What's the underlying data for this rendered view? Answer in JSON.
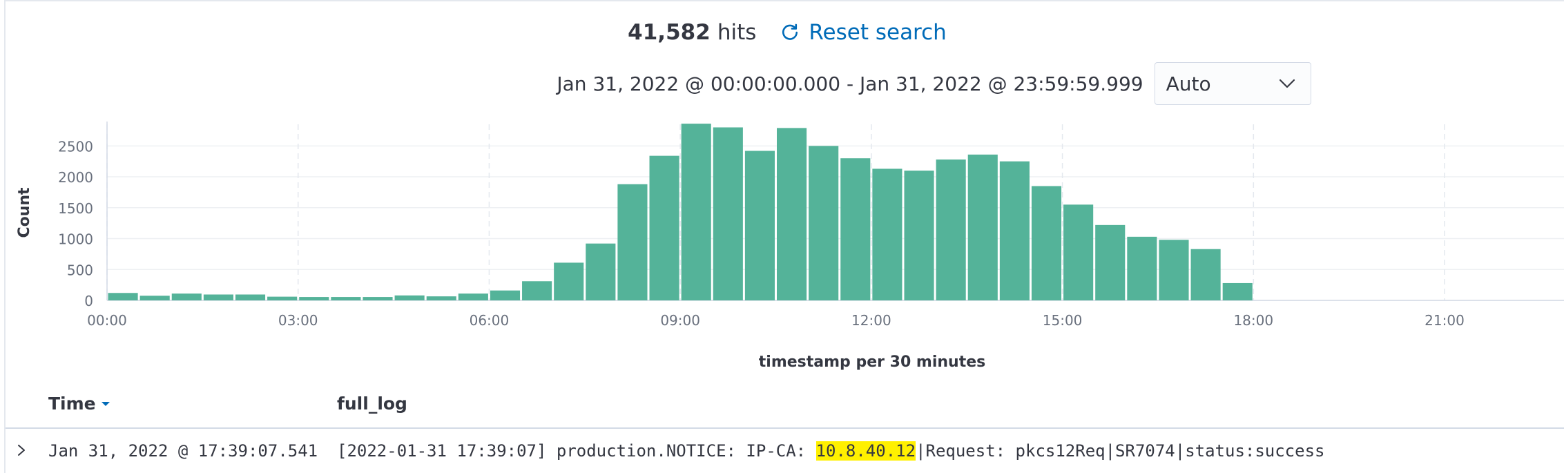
{
  "hits": {
    "count": "41,582",
    "label": "hits"
  },
  "reset": {
    "label": "Reset search",
    "icon": "refresh-icon"
  },
  "time_range": {
    "text": "Jan 31, 2022 @ 00:00:00.000 - Jan 31, 2022 @ 23:59:59.999"
  },
  "interval": {
    "selected": "Auto",
    "icon": "chevron-down-icon"
  },
  "colors": {
    "bar": "#54b399",
    "link": "#006bb8",
    "grid": "#eef0f3",
    "text": "#343741"
  },
  "table": {
    "columns": {
      "time": "Time",
      "full_log": "full_log"
    },
    "sort_icon": "sort-down-icon",
    "rows": [
      {
        "time": "Jan 31, 2022 @ 17:39:07.541",
        "log_before": "[2022-01-31 17:39:07] production.NOTICE: IP-CA: ",
        "log_highlight": "10.8.40.12",
        "log_after": "|Request: pkcs12Req|SR7074|status:success"
      }
    ]
  },
  "chart_data": {
    "type": "bar",
    "title": "",
    "xlabel": "timestamp per 30 minutes",
    "ylabel": "Count",
    "ylim": [
      0,
      2850
    ],
    "yticks": [
      0,
      500,
      1000,
      1500,
      2000,
      2500
    ],
    "xticks": [
      "00:00",
      "03:00",
      "06:00",
      "09:00",
      "12:00",
      "15:00",
      "18:00",
      "21:00"
    ],
    "xlim_hours": [
      0,
      24
    ],
    "bin_hours": 0.5,
    "grid": true,
    "values": [
      120,
      75,
      110,
      95,
      95,
      60,
      55,
      55,
      55,
      80,
      65,
      110,
      160,
      310,
      610,
      920,
      1880,
      2340,
      2860,
      2800,
      2420,
      2790,
      2500,
      2300,
      2130,
      2100,
      2280,
      2360,
      2250,
      1850,
      1550,
      1220,
      1030,
      980,
      830,
      280
    ]
  }
}
